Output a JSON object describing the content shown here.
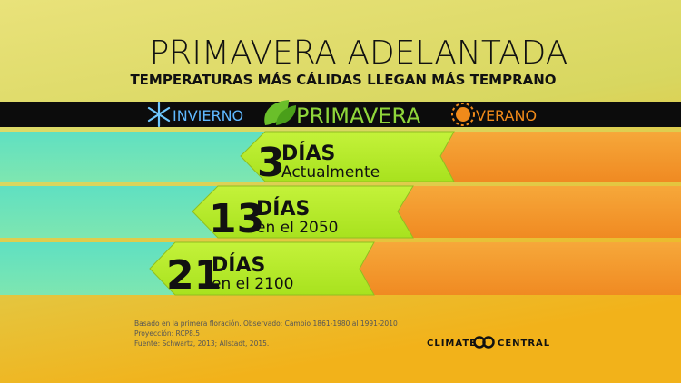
{
  "header": {
    "title": "PRIMAVERA ADELANTADA",
    "subtitle": "TEMPERATURAS MÁS CÁLIDAS LLEGAN MÁS TEMPRANO"
  },
  "seasons": [
    "INVIERNO",
    "PRIMAVERA",
    "VERANO"
  ],
  "rows": [
    {
      "number": 3,
      "unit": "DÍAS",
      "label": "Actualmente"
    },
    {
      "number": 13,
      "unit": "DÍAS",
      "label": "en el 2050"
    },
    {
      "number": 21,
      "unit": "DÍAS",
      "label": "en el 2100"
    }
  ],
  "footnotes": [
    "Basado en la primera floración. Observado: Cambio 1861-1980 al 1991-2010",
    "Proyección: RCP8.5",
    "Fuente: Schwartz, 2013; Allstadt, 2015."
  ],
  "logo": {
    "left": "CLIMATE",
    "right": "CENTRAL"
  }
}
